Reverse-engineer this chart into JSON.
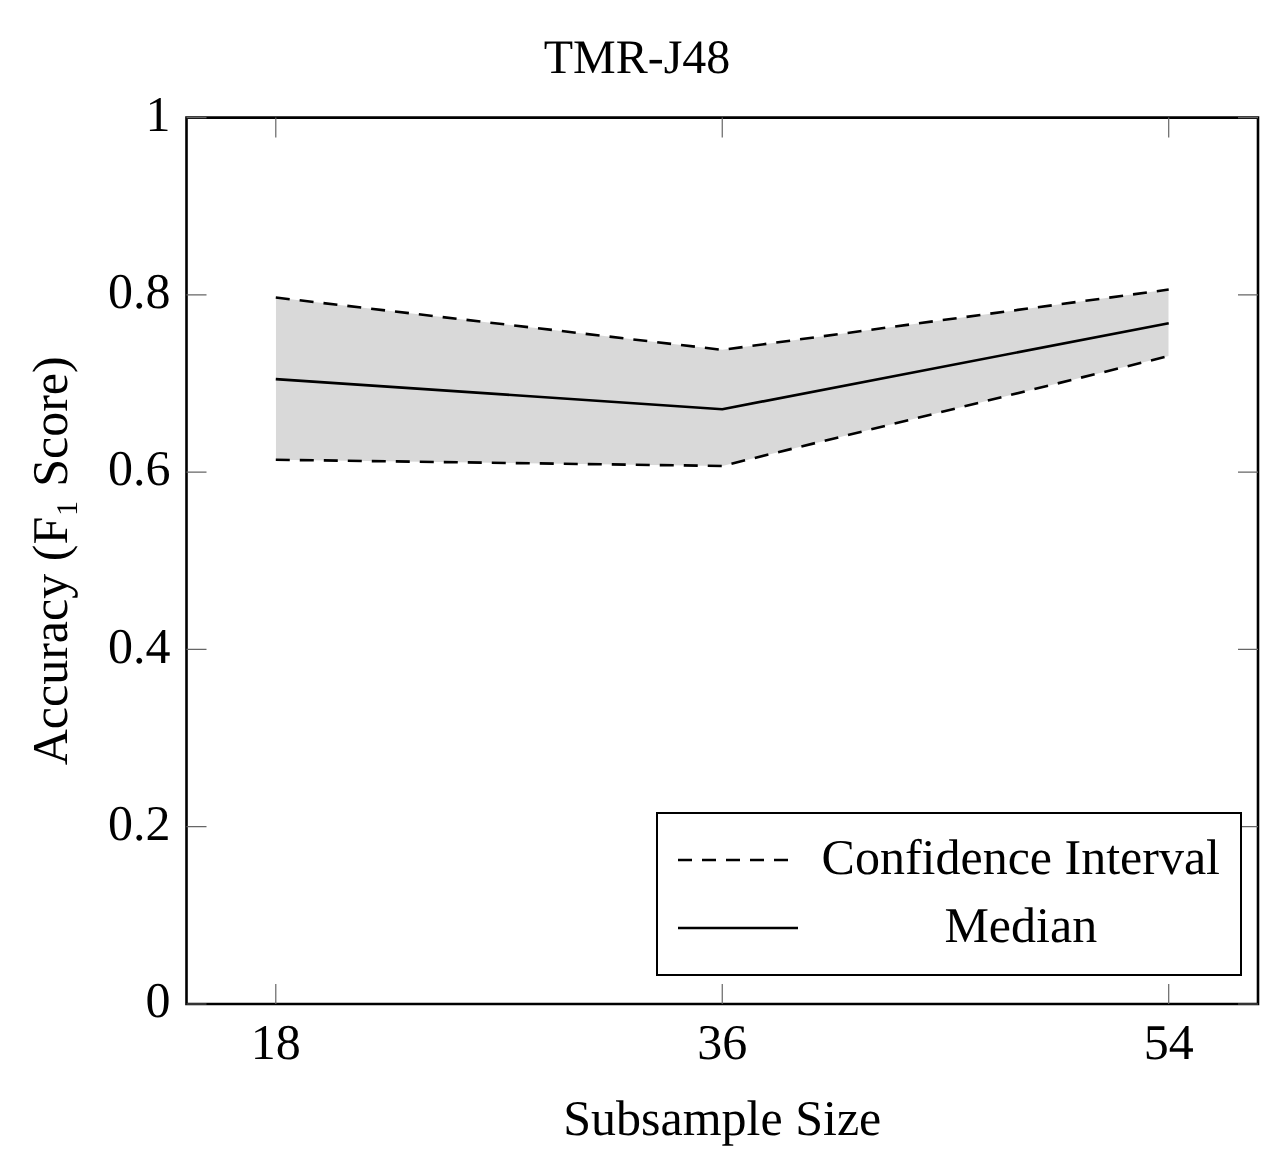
{
  "chart_data": {
    "type": "line",
    "title": "TMR-J48",
    "xlabel": "Subsample Size",
    "ylabel": "Accuracy (F₁ Score)",
    "x": [
      18,
      36,
      54
    ],
    "xlim": [
      14.4,
      57.6
    ],
    "xticks": [
      18,
      36,
      54
    ],
    "ylim": [
      0,
      1
    ],
    "yticks": [
      0,
      {
        "value": 0.2,
        "label": "0.2"
      },
      {
        "value": 0.4,
        "label": "0.4"
      },
      {
        "value": 0.6,
        "label": "0.6"
      },
      {
        "value": 0.8,
        "label": "0.8"
      },
      1
    ],
    "series": [
      {
        "name": "Confidence Interval",
        "color": "#000000",
        "line_style": "dashed",
        "values": [
          0.797,
          0.738,
          0.806
        ]
      },
      {
        "color": "#000000",
        "line_style": "dashed",
        "values": [
          0.614,
          0.607,
          0.731
        ]
      },
      {
        "name": "Median",
        "color": "#000000",
        "line_style": "solid",
        "values": [
          0.705,
          0.671,
          0.768
        ],
        "lower": [
          0.614,
          0.607,
          0.731
        ],
        "upper": [
          0.797,
          0.738,
          0.806
        ]
      }
    ],
    "grid": false,
    "legend": "bottom right",
    "marker": "none"
  }
}
